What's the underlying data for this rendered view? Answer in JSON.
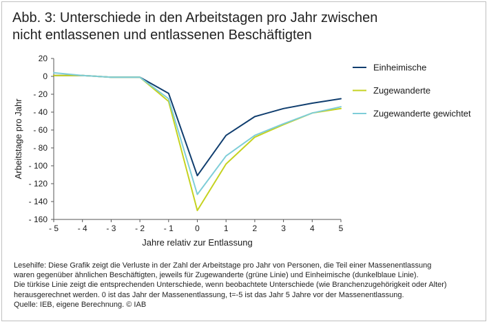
{
  "title_lines": [
    "Abb. 3: Unterschiede in den Arbeitstagen pro Jahr zwischen",
    "nicht entlassenen und entlassenen Beschäftigten"
  ],
  "chart_data": {
    "type": "line",
    "title": "Abb. 3: Unterschiede in den Arbeitstagen pro Jahr zwischen nicht entlassenen und entlassenen Beschäftigten",
    "xlabel": "Jahre relativ zur Entlassung",
    "ylabel": "Arbeitstage pro Jahr",
    "x": [
      -5,
      -4,
      -3,
      -2,
      -1,
      0,
      1,
      2,
      3,
      4,
      5
    ],
    "x_tick_labels": [
      "- 5",
      "- 4",
      "- 3",
      "- 2",
      "- 1",
      "0",
      "1",
      "2",
      "3",
      "4",
      "5"
    ],
    "y_ticks": [
      20,
      0,
      -20,
      -40,
      -60,
      -80,
      -100,
      -120,
      -140,
      -160
    ],
    "y_tick_labels": [
      "20",
      "0",
      "- 20",
      "- 40",
      "- 60",
      "- 80",
      "- 100",
      "- 120",
      "- 140",
      "- 160"
    ],
    "xlim": [
      -5,
      5
    ],
    "ylim": [
      -160,
      20
    ],
    "grid": false,
    "legend_position": "right",
    "series": [
      {
        "name": "Einheimische",
        "color": "#0f3d6e",
        "values": [
          1,
          1,
          -1,
          -1,
          -19,
          -111,
          -66,
          -45,
          -36,
          -30,
          -25
        ]
      },
      {
        "name": "Zugewanderte",
        "color": "#c5d21f",
        "values": [
          1,
          1,
          -1,
          -1,
          -28,
          -150,
          -98,
          -68,
          -54,
          -41,
          -36
        ]
      },
      {
        "name": "Zugewanderte gewichtet",
        "color": "#7ecdd8",
        "values": [
          4,
          1,
          -1,
          -1,
          -25,
          -132,
          -89,
          -66,
          -53,
          -41,
          -34
        ]
      }
    ]
  },
  "notes": [
    "Lesehilfe: Diese Grafik zeigt die Verluste in der Zahl der Arbeitstage pro Jahr von Personen, die Teil einer Massenentlassung",
    "waren gegenüber ähnlichen Beschäftigten, jeweils für Zugewanderte (grüne Linie) und Einheimische (dunkelblaue Linie).",
    "Die türkise Linie zeigt die entsprechenden Unterschiede, wenn beobachtete Unterschiede (wie Branchenzugehörigkeit oder Alter)",
    "herausgerechnet werden. 0 ist das Jahr der Massenentlassung, t=-5 ist das Jahr 5 Jahre vor der Massenentlassung.",
    "Quelle: IEB, eigene Berechnung. © IAB"
  ]
}
